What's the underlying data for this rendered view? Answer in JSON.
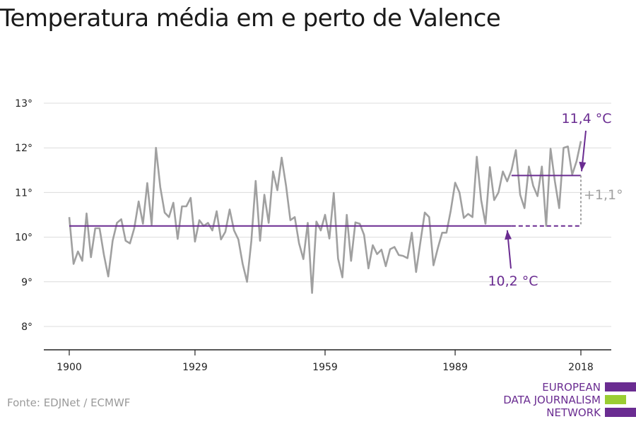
{
  "title": "Temperatura média em e perto de Valence",
  "source": "Fonte: EDJNet / ECMWF",
  "logo": {
    "lines": [
      "EUROPEAN",
      "DATA JOURNALISM",
      "NETWORK"
    ],
    "colors": {
      "purple": "#6a2c91",
      "green": "#9acd32"
    }
  },
  "chart_data": {
    "type": "line",
    "title": "Temperatura média em e perto de Valence",
    "xlabel": "",
    "ylabel": "",
    "xlim": [
      1900,
      2018
    ],
    "ylim": [
      7.5,
      13.5
    ],
    "x_ticks": [
      1900,
      1929,
      1959,
      1989,
      2018
    ],
    "x_tick_labels": [
      "1900",
      "1929",
      "1959",
      "1989",
      "2018"
    ],
    "y_ticks": [
      8,
      9,
      10,
      11,
      12,
      13
    ],
    "y_tick_labels": [
      "8°",
      "9°",
      "10°",
      "11°",
      "12°",
      "13°"
    ],
    "grid": true,
    "colors": {
      "series": "#a0a0a0",
      "accent": "#6a2c91",
      "diff": "#a0a0a0"
    },
    "series": [
      {
        "x_start": 1900,
        "values": [
          10.45,
          9.4,
          9.68,
          9.47,
          10.53,
          9.55,
          10.2,
          10.2,
          9.6,
          9.12,
          9.92,
          10.32,
          10.4,
          9.92,
          9.86,
          10.2,
          10.8,
          10.3,
          11.21,
          10.28,
          12.0,
          11.12,
          10.55,
          10.45,
          10.77,
          9.96,
          10.69,
          10.69,
          10.88,
          9.9,
          10.38,
          10.25,
          10.32,
          10.15,
          10.58,
          9.95,
          10.12,
          10.62,
          10.15,
          9.95,
          9.4,
          9.0,
          9.92,
          11.26,
          9.92,
          10.95,
          10.32,
          11.47,
          11.05,
          11.78,
          11.15,
          10.38,
          10.45,
          9.86,
          9.51,
          10.32,
          8.75,
          10.35,
          10.15,
          10.5,
          9.97,
          10.99,
          9.52,
          9.1,
          10.5,
          9.47,
          10.33,
          10.3,
          10.05,
          9.3,
          9.82,
          9.62,
          9.72,
          9.35,
          9.73,
          9.78,
          9.6,
          9.58,
          9.53,
          10.1,
          9.22,
          9.9,
          10.55,
          10.45,
          9.37,
          9.75,
          10.1,
          10.1,
          10.6,
          11.22,
          11.0,
          10.43,
          10.52,
          10.45,
          11.8,
          10.83,
          10.3,
          11.57,
          10.83,
          11.0,
          11.47,
          11.25,
          11.5,
          11.95,
          10.95,
          10.65,
          11.58,
          11.15,
          10.92,
          11.58,
          10.25,
          11.98,
          11.25,
          10.65,
          12.0,
          12.03,
          11.4,
          11.7,
          12.15
        ]
      }
    ],
    "baseline": {
      "value": 10.25,
      "label": "10,2 °C",
      "from": 1900,
      "to": 2018,
      "dashed_from": 2002
    },
    "recent": {
      "value": 11.38,
      "label": "11,4 °C",
      "from": 2002,
      "to": 2018
    },
    "difference": {
      "label": "+1,1°"
    }
  }
}
